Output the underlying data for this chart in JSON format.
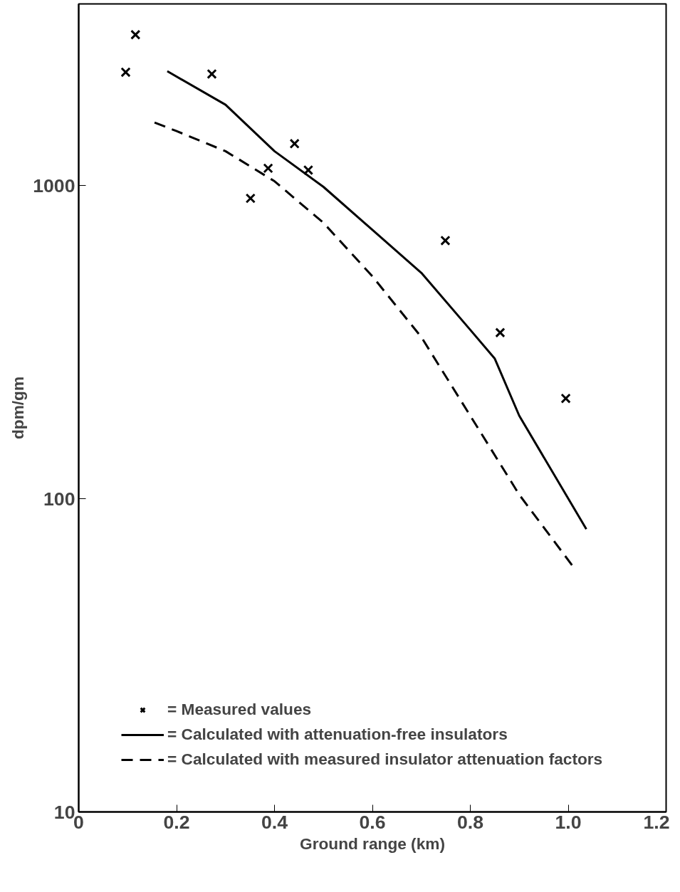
{
  "chart_data": {
    "type": "line",
    "xlabel": "Ground range (km)",
    "ylabel": "dpm/gm",
    "log": "y",
    "xlim": [
      0,
      1.2
    ],
    "ylim": [
      10,
      3800
    ],
    "xticks": [
      0,
      0.2,
      0.4,
      0.6,
      0.8,
      {
        "value": 1.0,
        "label": "1.0"
      },
      1.2
    ],
    "yticks": [
      10,
      100,
      1000
    ],
    "grid": false,
    "legend": "bottom left",
    "series": [
      {
        "name": "= Measured values",
        "type": "scatter",
        "marker": "cross",
        "color": "#000000",
        "x": [
          0.116,
          0.096,
          0.272,
          0.441,
          0.387,
          0.469,
          0.351,
          0.749,
          0.861,
          0.995
        ],
        "values": [
          3030,
          2300,
          2270,
          1360,
          1135,
          1120,
          910,
          667,
          339,
          209
        ]
      },
      {
        "name": "= Calculated with attenuation-free insulators",
        "line_style": "solid",
        "color": "#000000",
        "x": [
          0.181,
          0.3,
          0.4,
          0.5,
          0.6,
          0.7,
          0.8,
          0.85,
          0.9,
          1.037
        ],
        "values": [
          2317,
          1811,
          1287,
          990,
          722,
          526,
          346,
          280,
          184,
          80
        ]
      },
      {
        "name": "= Calculated with measured insulator attenuation factors",
        "line_style": "dashed",
        "color": "#000000",
        "x": [
          0.155,
          0.2,
          0.3,
          0.4,
          0.5,
          0.6,
          0.7,
          0.8,
          0.9,
          1.009
        ],
        "values": [
          1588,
          1492,
          1287,
          1032,
          760,
          513,
          328,
          184,
          103,
          61
        ]
      }
    ]
  }
}
